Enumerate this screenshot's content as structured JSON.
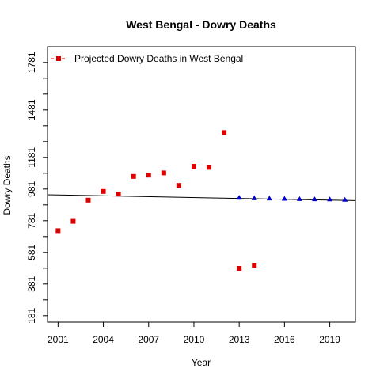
{
  "chart_data": {
    "type": "scatter",
    "title": "West Bengal  -  Dowry Deaths",
    "xlabel": "Year",
    "ylabel": "Dowry Deaths",
    "xlim": [
      2000.3,
      2020.7
    ],
    "ylim": [
      140,
      1880
    ],
    "x_ticks": [
      2001,
      2004,
      2007,
      2010,
      2013,
      2016,
      2019
    ],
    "y_ticks": [
      181,
      381,
      581,
      781,
      981,
      1181,
      1481,
      1781
    ],
    "y_minor_ticks": [
      281,
      481,
      681,
      881,
      1081,
      1281,
      1381,
      1581,
      1681
    ],
    "series": [
      {
        "color": "#dd0000",
        "marker": "square",
        "x": [
          2001,
          2002,
          2003,
          2004,
          2005,
          2006,
          2007,
          2008,
          2009,
          2010,
          2011,
          2012,
          2013,
          2014
        ],
        "y": [
          718,
          777,
          911,
          966,
          949,
          1061,
          1069,
          1083,
          1004,
          1125,
          1118,
          1338,
          480,
          500
        ]
      },
      {
        "color": "#0000cc",
        "marker": "triangle",
        "x": [
          2013,
          2014,
          2015,
          2016,
          2017,
          2018,
          2019,
          2020
        ],
        "y": [
          926,
          923,
          922,
          920,
          918,
          917,
          916,
          914
        ]
      }
    ],
    "trend_line": {
      "color": "#000000",
      "x": [
        2000.3,
        2020.7
      ],
      "y": [
        945,
        908
      ]
    },
    "legend": {
      "position": "top-left",
      "entries": [
        {
          "label": "Projected  Dowry Deaths  in  West Bengal",
          "color": "#dd0000",
          "marker": "square"
        }
      ]
    },
    "grid": false
  }
}
